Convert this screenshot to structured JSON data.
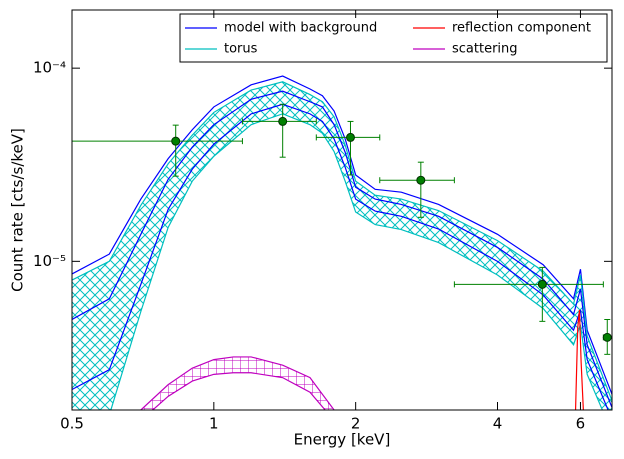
{
  "chart_data": {
    "type": "line",
    "xlabel": "Energy [keV]",
    "ylabel": "Count rate [cts/s/keV]",
    "xscale": "log",
    "yscale": "log",
    "xlim": [
      0.5,
      7
    ],
    "ylim": [
      1.7e-06,
      0.0002
    ],
    "xticks": [
      0.5,
      1,
      2,
      4,
      6
    ],
    "yticks": [
      {
        "value": 1e-05,
        "label": "10⁻⁵"
      },
      {
        "value": 0.0001,
        "label": "10⁻⁴"
      }
    ],
    "legend": "upper right",
    "x": [
      0.5,
      0.6,
      0.7,
      0.8,
      0.9,
      1.0,
      1.2,
      1.4,
      1.6,
      1.7,
      1.8,
      1.9,
      2.0,
      2.2,
      2.5,
      3.0,
      4.0,
      5.0,
      5.8,
      6.0,
      6.2,
      7.0
    ],
    "series": [
      {
        "name": "model with background",
        "color": "#0000ff",
        "values": [
          5e-06,
          6.4e-06,
          1.38e-05,
          2.66e-05,
          3.9e-05,
          5.1e-05,
          6.9e-05,
          7.6e-05,
          6.7e-05,
          6.3e-05,
          5.1e-05,
          3.67e-05,
          2.42e-05,
          2.1e-05,
          1.97e-05,
          1.71e-05,
          1.18e-05,
          8.1e-06,
          5.3e-06,
          7.2e-06,
          3.7e-06,
          1.75e-06
        ],
        "upper": [
          8.6e-06,
          1.09e-05,
          2.1e-05,
          3.4e-05,
          4.8e-05,
          6.3e-05,
          8.2e-05,
          9.1e-05,
          7.8e-05,
          7.2e-05,
          6e-05,
          4.3e-05,
          2.8e-05,
          2.36e-05,
          2.28e-05,
          1.97e-05,
          1.38e-05,
          9.6e-06,
          6.4e-06,
          9.1e-06,
          4.4e-06,
          2.05e-06
        ],
        "lower": [
          2.17e-06,
          2.75e-06,
          7.6e-06,
          1.86e-05,
          3e-05,
          4.04e-05,
          5.8e-05,
          6.5e-05,
          5.8e-05,
          5.3e-05,
          4.3e-05,
          3.07e-05,
          2.1e-05,
          1.82e-05,
          1.71e-05,
          1.47e-05,
          1e-05,
          6.7e-06,
          4.4e-06,
          5.6e-06,
          3.1e-06,
          1.52e-06
        ]
      },
      {
        "name": "torus",
        "color": "#00bfbf",
        "upper": [
          8e-06,
          1e-05,
          1.95e-05,
          3.2e-05,
          4.5e-05,
          5.9e-05,
          7.7e-05,
          8.5e-05,
          7.3e-05,
          6.7e-05,
          5.6e-05,
          4e-05,
          2.6e-05,
          2.2e-05,
          2.1e-05,
          1.83e-05,
          1.28e-05,
          8.9e-06,
          6e-06,
          8.5e-06,
          4.1e-06,
          1.9e-06
        ],
        "lower": [
          1.2e-06,
          1.6e-06,
          5.5e-06,
          1.5e-05,
          2.6e-05,
          3.5e-05,
          5.1e-05,
          5.8e-05,
          5.1e-05,
          4.6e-05,
          3.7e-05,
          2.6e-05,
          1.8e-05,
          1.55e-05,
          1.46e-05,
          1.25e-05,
          8.5e-06,
          5.7e-06,
          3.7e-06,
          4.7e-06,
          2.6e-06,
          1.3e-06
        ]
      },
      {
        "name": "reflection component",
        "color": "#ff0000",
        "x": [
          5.85,
          5.92,
          5.97,
          6.02,
          6.1
        ],
        "values": [
          1.5e-06,
          4.5e-06,
          5.6e-06,
          3e-06,
          1.5e-06
        ]
      },
      {
        "name": "scattering",
        "color": "#bf00bf",
        "x": [
          0.7,
          0.8,
          0.9,
          1.0,
          1.1,
          1.2,
          1.4,
          1.6,
          1.8
        ],
        "upper": [
          1.7e-06,
          2.3e-06,
          2.8e-06,
          3.1e-06,
          3.2e-06,
          3.2e-06,
          2.9e-06,
          2.5e-06,
          1.7e-06
        ],
        "lower": [
          1.5e-06,
          2e-06,
          2.4e-06,
          2.6e-06,
          2.65e-06,
          2.65e-06,
          2.5e-06,
          2.1e-06,
          1.5e-06
        ]
      }
    ],
    "points": {
      "color": "#008000",
      "x": [
        0.83,
        1.4,
        1.95,
        2.75,
        4.98,
        6.84
      ],
      "values": [
        4.19e-05,
        5.3e-05,
        4.38e-05,
        2.63e-05,
        7.6e-06,
        4.04e-06
      ],
      "xlow": [
        0.5,
        1.15,
        1.65,
        2.25,
        3.24,
        6.71
      ],
      "xhigh": [
        1.15,
        1.65,
        2.25,
        3.24,
        6.71,
        7.0
      ],
      "ylow": [
        2.76e-05,
        3.46e-05,
        2.8e-05,
        1.69e-05,
        4.89e-06,
        3.3e-06
      ],
      "yhigh": [
        5.07e-05,
        6.5e-05,
        5.3e-05,
        3.26e-05,
        9.3e-06,
        5e-06
      ]
    }
  }
}
